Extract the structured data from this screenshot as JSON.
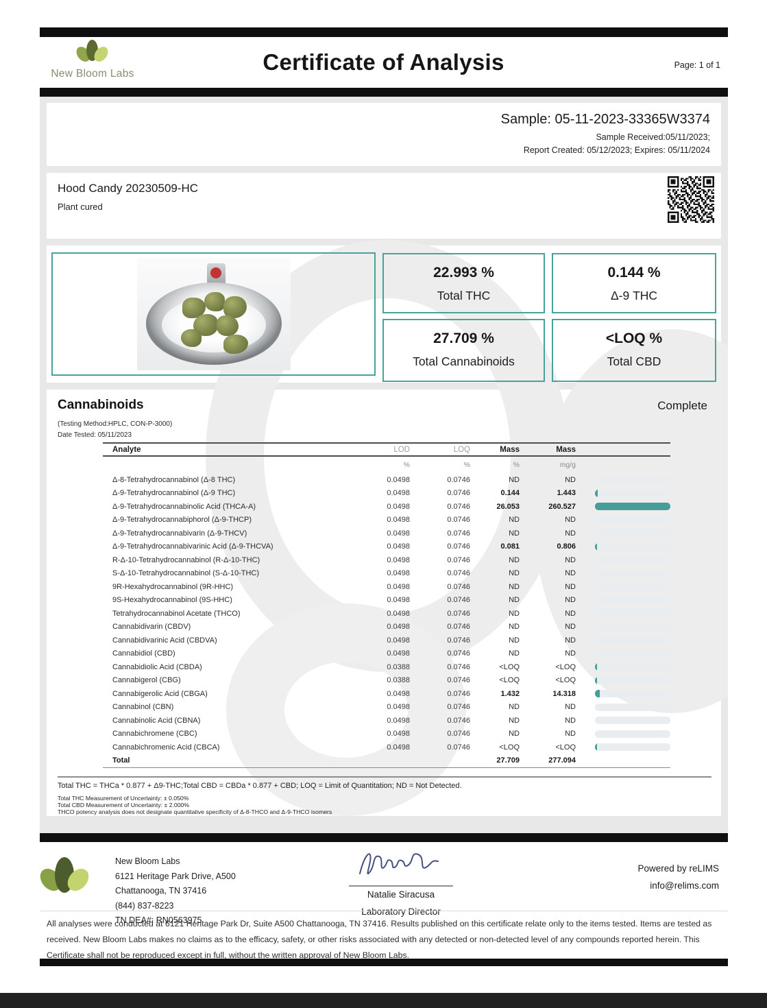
{
  "page": {
    "title": "Certificate of Analysis",
    "page_label": "Page: 1 of 1"
  },
  "brand": {
    "name": "New Bloom Labs"
  },
  "sample": {
    "id_line": "Sample: 05-11-2023-33365W3374",
    "received": "Sample Received:05/11/2023;",
    "report": "Report Created: 05/12/2023; Expires: 05/11/2024"
  },
  "product": {
    "name": "Hood Candy 20230509-HC",
    "type": "Plant cured"
  },
  "summary": [
    {
      "value": "22.993 %",
      "label": "Total THC"
    },
    {
      "value": "0.144 %",
      "label": "Δ-9 THC"
    },
    {
      "value": "27.709 %",
      "label": "Total Cannabinoids"
    },
    {
      "value": "<LOQ %",
      "label": "Total CBD"
    }
  ],
  "cannabinoids": {
    "heading": "Cannabinoids",
    "status": "Complete",
    "method": "(Testing Method:HPLC, CON-P-3000)",
    "date_tested": "Date Tested: 05/11/2023",
    "columns": {
      "analyte": "Analyte",
      "lod": "LOD",
      "loq": "LOQ",
      "mass_pct": "Mass",
      "mass_mgg": "Mass"
    },
    "units": {
      "lod": "%",
      "loq": "%",
      "mass_pct": "%",
      "mass_mgg": "mg/g"
    },
    "rows": [
      {
        "analyte": "Δ-8-Tetrahydrocannabinol (Δ-8 THC)",
        "lod": "0.0498",
        "loq": "0.0746",
        "mass_pct": "ND",
        "mass_mgg": "ND",
        "detected": false,
        "bar": 0
      },
      {
        "analyte": "Δ-9-Tetrahydrocannabinol (Δ-9 THC)",
        "lod": "0.0498",
        "loq": "0.0746",
        "mass_pct": "0.144",
        "mass_mgg": "1.443",
        "detected": true,
        "bar": 0.035
      },
      {
        "analyte": "Δ-9-Tetrahydrocannabinolic Acid (THCA-A)",
        "lod": "0.0498",
        "loq": "0.0746",
        "mass_pct": "26.053",
        "mass_mgg": "260.527",
        "detected": true,
        "bar": 1
      },
      {
        "analyte": "Δ-9-Tetrahydrocannabiphorol (Δ-9-THCP)",
        "lod": "0.0498",
        "loq": "0.0746",
        "mass_pct": "ND",
        "mass_mgg": "ND",
        "detected": false,
        "bar": 0
      },
      {
        "analyte": "Δ-9-Tetrahydrocannabivarin (Δ-9-THCV)",
        "lod": "0.0498",
        "loq": "0.0746",
        "mass_pct": "ND",
        "mass_mgg": "ND",
        "detected": false,
        "bar": 0
      },
      {
        "analyte": "Δ-9-Tetrahydrocannabivarinic Acid (Δ-9-THCVA)",
        "lod": "0.0498",
        "loq": "0.0746",
        "mass_pct": "0.081",
        "mass_mgg": "0.806",
        "detected": true,
        "bar": 0.03
      },
      {
        "analyte": "R-Δ-10-Tetrahydrocannabinol (R-Δ-10-THC)",
        "lod": "0.0498",
        "loq": "0.0746",
        "mass_pct": "ND",
        "mass_mgg": "ND",
        "detected": false,
        "bar": 0
      },
      {
        "analyte": "S-Δ-10-Tetrahydrocannabinol (S-Δ-10-THC)",
        "lod": "0.0498",
        "loq": "0.0746",
        "mass_pct": "ND",
        "mass_mgg": "ND",
        "detected": false,
        "bar": 0
      },
      {
        "analyte": "9R-Hexahydrocannabinol (9R-HHC)",
        "lod": "0.0498",
        "loq": "0.0746",
        "mass_pct": "ND",
        "mass_mgg": "ND",
        "detected": false,
        "bar": 0
      },
      {
        "analyte": "9S-Hexahydrocannabinol (9S-HHC)",
        "lod": "0.0498",
        "loq": "0.0746",
        "mass_pct": "ND",
        "mass_mgg": "ND",
        "detected": false,
        "bar": 0
      },
      {
        "analyte": "Tetrahydrocannabinol Acetate (THCO)",
        "lod": "0.0498",
        "loq": "0.0746",
        "mass_pct": "ND",
        "mass_mgg": "ND",
        "detected": false,
        "bar": 0
      },
      {
        "analyte": "Cannabidivarin (CBDV)",
        "lod": "0.0498",
        "loq": "0.0746",
        "mass_pct": "ND",
        "mass_mgg": "ND",
        "detected": false,
        "bar": 0
      },
      {
        "analyte": "Cannabidivarinic Acid (CBDVA)",
        "lod": "0.0498",
        "loq": "0.0746",
        "mass_pct": "ND",
        "mass_mgg": "ND",
        "detected": false,
        "bar": 0
      },
      {
        "analyte": "Cannabidiol (CBD)",
        "lod": "0.0498",
        "loq": "0.0746",
        "mass_pct": "ND",
        "mass_mgg": "ND",
        "detected": false,
        "bar": 0
      },
      {
        "analyte": "Cannabidiolic Acid (CBDA)",
        "lod": "0.0388",
        "loq": "0.0746",
        "mass_pct": "<LOQ",
        "mass_mgg": "<LOQ",
        "detected": false,
        "bar": 0.028
      },
      {
        "analyte": "Cannabigerol (CBG)",
        "lod": "0.0388",
        "loq": "0.0746",
        "mass_pct": "<LOQ",
        "mass_mgg": "<LOQ",
        "detected": false,
        "bar": 0.028
      },
      {
        "analyte": "Cannabigerolic Acid (CBGA)",
        "lod": "0.0498",
        "loq": "0.0746",
        "mass_pct": "1.432",
        "mass_mgg": "14.318",
        "detected": true,
        "bar": 0.06
      },
      {
        "analyte": "Cannabinol (CBN)",
        "lod": "0.0498",
        "loq": "0.0746",
        "mass_pct": "ND",
        "mass_mgg": "ND",
        "detected": false,
        "bar": 0
      },
      {
        "analyte": "Cannabinolic Acid (CBNA)",
        "lod": "0.0498",
        "loq": "0.0746",
        "mass_pct": "ND",
        "mass_mgg": "ND",
        "detected": false,
        "bar": 0
      },
      {
        "analyte": "Cannabichromene (CBC)",
        "lod": "0.0498",
        "loq": "0.0746",
        "mass_pct": "ND",
        "mass_mgg": "ND",
        "detected": false,
        "bar": 0
      },
      {
        "analyte": "Cannabichromenic Acid (CBCA)",
        "lod": "0.0498",
        "loq": "0.0746",
        "mass_pct": "<LOQ",
        "mass_mgg": "<LOQ",
        "detected": false,
        "bar": 0.028
      }
    ],
    "total": {
      "label": "Total",
      "mass_pct": "27.709",
      "mass_mgg": "277.094"
    },
    "footnote": "Total THC = THCa * 0.877 + Δ9-THC;Total CBD = CBDa * 0.877 + CBD; LOQ = Limit of Quantitation; ND = Not Detected.",
    "uncertainty": [
      "Total THC Measurement of Uncertainty: ± 0.050%",
      "Total CBD Measurement of Uncertainty: ± 2.000%",
      "THCO potency analysis does not designate quantitative specificity of Δ-8-THCO and Δ-9-THCO isomers"
    ]
  },
  "footer": {
    "address_lines": [
      "New Bloom Labs",
      "6121 Heritage Park Drive, A500",
      "Chattanooga, TN 37416",
      "(844) 837-8223",
      "TN DEA#: RN0563975"
    ],
    "signer": "Natalie Siracusa",
    "signer_title": "Laboratory Director",
    "powered": "Powered by reLIMS",
    "email": "info@relims.com"
  },
  "disclaimer": "All analyses were conducted at 6121 Heritage Park Dr, Suite A500 Chattanooga, TN 37416. Results published on this certificate relate only to the items tested. Items are tested as received. New Bloom Labs makes no claims as to the efficacy, safety, or other risks associated with any detected or non-detected level of any compounds reported herein. This Certificate shall not be reproduced except in full, without the written approval of New Bloom Labs.",
  "colors": {
    "accent_teal": "#45a39b",
    "bar_fill": "#459e97",
    "bar_track": "#e9edf0",
    "panel_gray": "#e8e8e8",
    "logo_dark": "#4c5c2c",
    "logo_mid": "#8aa046",
    "logo_light": "#c3d472",
    "signature_ink": "#46507f",
    "red_dot": "#c23333"
  }
}
